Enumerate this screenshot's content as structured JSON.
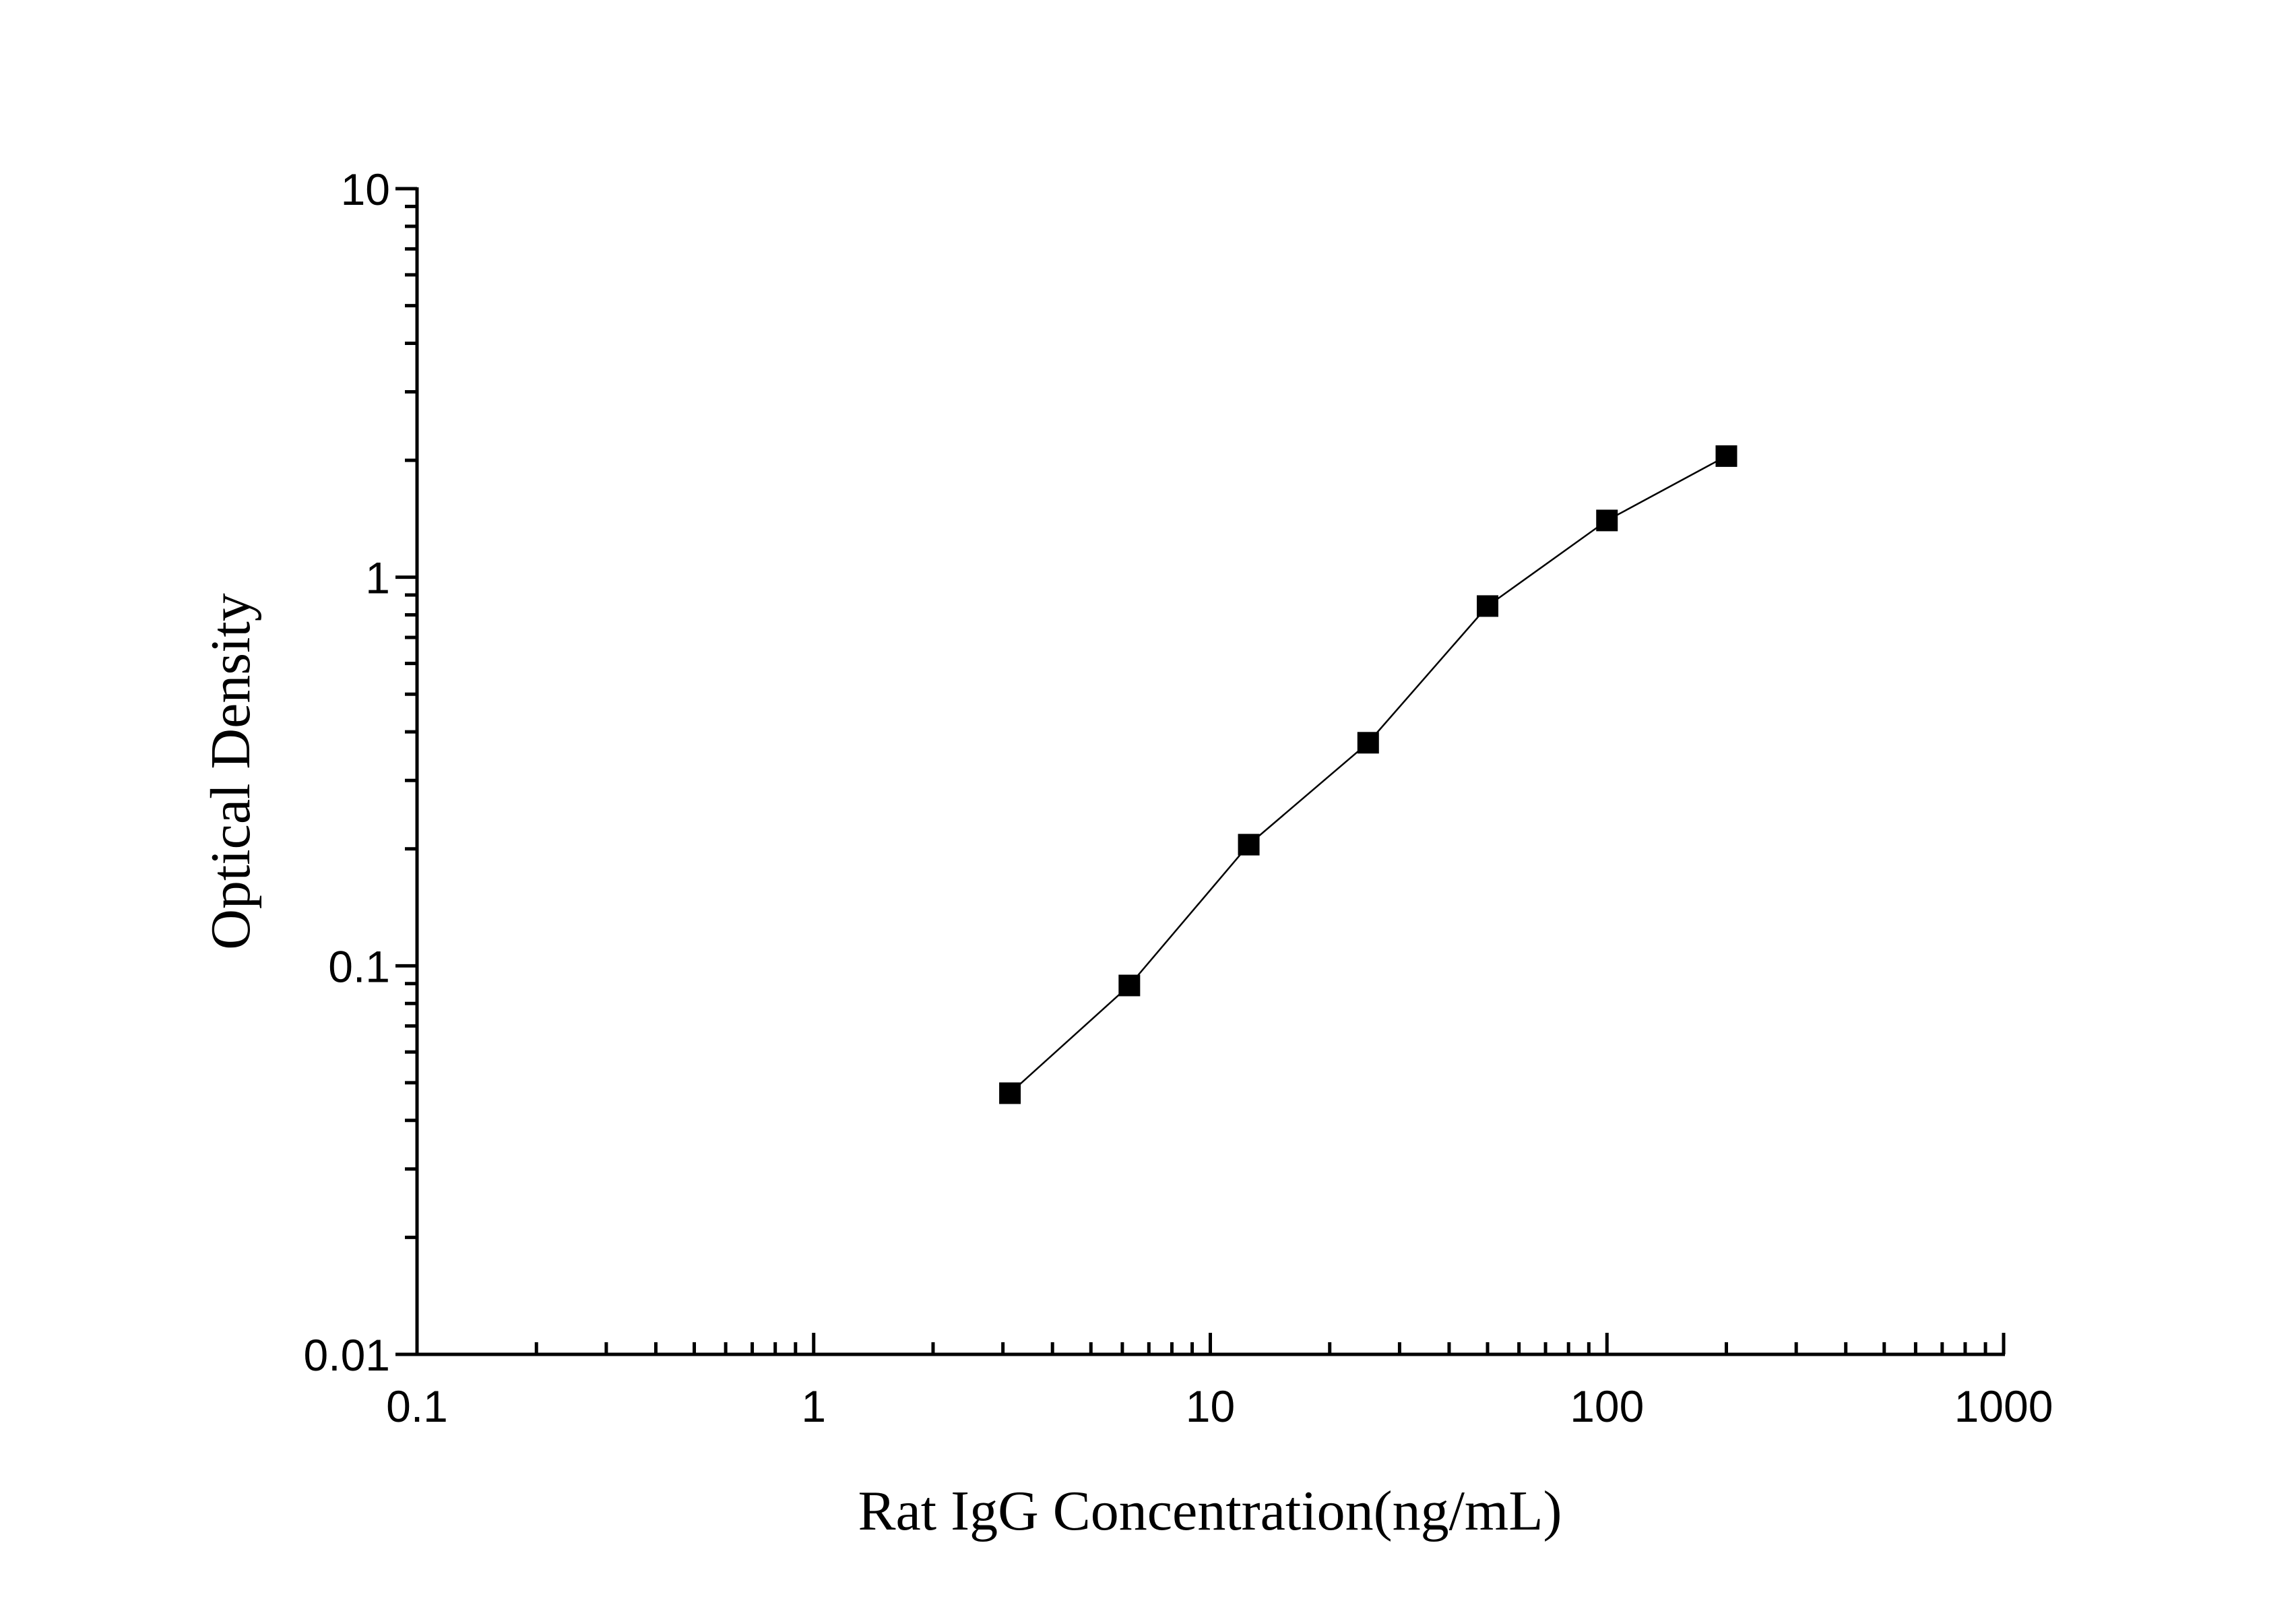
{
  "chart_data": {
    "type": "line",
    "x_label": "Rat IgG Concentration(ng/mL)",
    "y_label": "Optical Density",
    "x": [
      3.125,
      6.25,
      12.5,
      25,
      50,
      100,
      200
    ],
    "series": [
      {
        "color": "#000000",
        "values": [
          0.047,
          0.089,
          0.205,
          0.375,
          0.843,
          1.4,
          2.05
        ]
      }
    ],
    "xlim": [
      0.1,
      1000
    ],
    "ylim": [
      0.01,
      10
    ],
    "xticks": [
      0.1,
      1,
      10,
      100,
      1000
    ],
    "yticks": [
      0.01,
      0.1,
      1,
      10
    ],
    "xscale": "log",
    "yscale": "log",
    "grid": false,
    "marker": "square"
  }
}
